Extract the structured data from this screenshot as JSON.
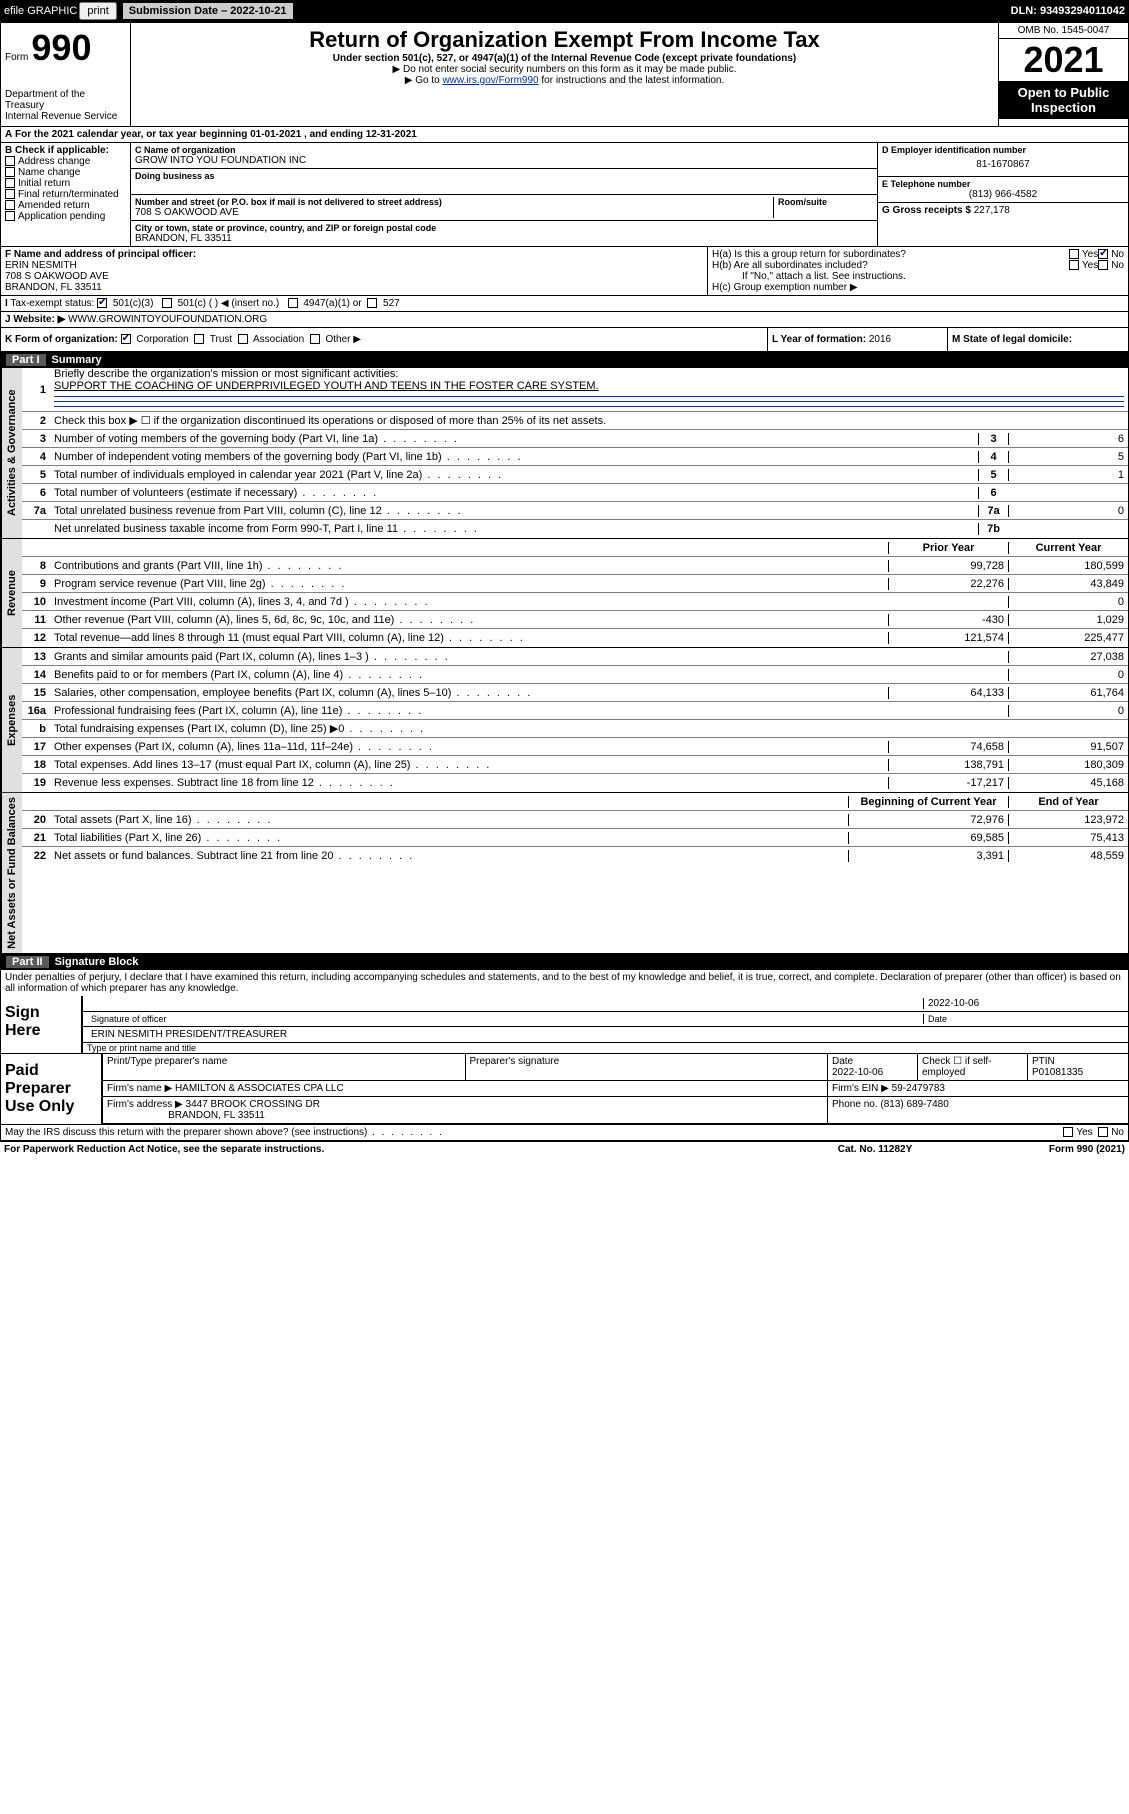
{
  "topbar": {
    "efile": "efile GRAPHIC",
    "print": "print",
    "sub_date_label": "Submission Date – 2022-10-21",
    "dln": "DLN: 93493294011042"
  },
  "header": {
    "form_word": "Form",
    "form_number": "990",
    "dept": "Department of the Treasury",
    "irs": "Internal Revenue Service",
    "title": "Return of Organization Exempt From Income Tax",
    "subtitle": "Under section 501(c), 527, or 4947(a)(1) of the Internal Revenue Code (except private foundations)",
    "warn": "▶ Do not enter social security numbers on this form as it may be made public.",
    "goto_pre": "▶ Go to ",
    "goto_link": "www.irs.gov/Form990",
    "goto_post": " for instructions and the latest information.",
    "omb": "OMB No. 1545-0047",
    "year": "2021",
    "open": "Open to Public Inspection"
  },
  "A": "For the 2021 calendar year, or tax year beginning 01-01-2021   , and ending 12-31-2021",
  "B": {
    "label": "B Check if applicable:",
    "opts": [
      "Address change",
      "Name change",
      "Initial return",
      "Final return/terminated",
      "Amended return",
      "Application pending"
    ]
  },
  "C": {
    "name_label": "C Name of organization",
    "name": "GROW INTO YOU FOUNDATION INC",
    "dba_label": "Doing business as",
    "addr_label": "Number and street (or P.O. box if mail is not delivered to street address)",
    "room_label": "Room/suite",
    "addr": "708 S OAKWOOD AVE",
    "city_label": "City or town, state or province, country, and ZIP or foreign postal code",
    "city": "BRANDON, FL  33511"
  },
  "D": {
    "label": "D Employer identification number",
    "value": "81-1670867"
  },
  "E": {
    "label": "E Telephone number",
    "value": "(813) 966-4582"
  },
  "G": {
    "label": "G Gross receipts $",
    "value": "227,178"
  },
  "F": {
    "label": "F Name and address of principal officer:",
    "lines": [
      "ERIN NESMITH",
      "708 S OAKWOOD AVE",
      "BRANDON, FL  33511"
    ]
  },
  "H": {
    "a": "H(a)  Is this a group return for subordinates?",
    "a_yes": "Yes",
    "a_no": "No",
    "b": "H(b)  Are all subordinates included?",
    "b_note": "If \"No,\" attach a list. See instructions.",
    "c": "H(c)  Group exemption number ▶"
  },
  "I": {
    "label": "Tax-exempt status:",
    "o1": "501(c)(3)",
    "o2": "501(c) ( ) ◀ (insert no.)",
    "o3": "4947(a)(1) or",
    "o4": "527"
  },
  "J": {
    "label": "Website: ▶",
    "value": "WWW.GROWINTOYOUFOUNDATION.ORG"
  },
  "K": {
    "label": "K Form of organization:",
    "opts": [
      "Corporation",
      "Trust",
      "Association",
      "Other ▶"
    ]
  },
  "L": {
    "label": "L Year of formation:",
    "value": "2016"
  },
  "M": {
    "label": "M State of legal domicile:",
    "value": ""
  },
  "part1": {
    "title": "Part I",
    "name": "Summary",
    "side_ag": "Activities & Governance",
    "side_rev": "Revenue",
    "side_exp": "Expenses",
    "side_na": "Net Assets or Fund Balances",
    "l1a": "Briefly describe the organization's mission or most significant activities:",
    "l1b": "SUPPORT THE COACHING OF UNDERPRIVILEGED YOUTH AND TEENS IN THE FOSTER CARE SYSTEM.",
    "l2": "Check this box ▶ ☐  if the organization discontinued its operations or disposed of more than 25% of its net assets.",
    "l3": "Number of voting members of the governing body (Part VI, line 1a)",
    "l4": "Number of independent voting members of the governing body (Part VI, line 1b)",
    "l5": "Total number of individuals employed in calendar year 2021 (Part V, line 2a)",
    "l6": "Total number of volunteers (estimate if necessary)",
    "l7a": "Total unrelated business revenue from Part VIII, column (C), line 12",
    "l7b": "Net unrelated business taxable income from Form 990-T, Part I, line 11",
    "v3": "6",
    "v4": "5",
    "v5": "1",
    "v6": "",
    "v7a": "0",
    "v7b": "",
    "col_py": "Prior Year",
    "col_cy": "Current Year",
    "rows_rev": [
      {
        "n": "8",
        "t": "Contributions and grants (Part VIII, line 1h)",
        "py": "99,728",
        "cy": "180,599"
      },
      {
        "n": "9",
        "t": "Program service revenue (Part VIII, line 2g)",
        "py": "22,276",
        "cy": "43,849"
      },
      {
        "n": "10",
        "t": "Investment income (Part VIII, column (A), lines 3, 4, and 7d )",
        "py": "",
        "cy": "0"
      },
      {
        "n": "11",
        "t": "Other revenue (Part VIII, column (A), lines 5, 6d, 8c, 9c, 10c, and 11e)",
        "py": "-430",
        "cy": "1,029"
      },
      {
        "n": "12",
        "t": "Total revenue—add lines 8 through 11 (must equal Part VIII, column (A), line 12)",
        "py": "121,574",
        "cy": "225,477"
      }
    ],
    "rows_exp": [
      {
        "n": "13",
        "t": "Grants and similar amounts paid (Part IX, column (A), lines 1–3 )",
        "py": "",
        "cy": "27,038"
      },
      {
        "n": "14",
        "t": "Benefits paid to or for members (Part IX, column (A), line 4)",
        "py": "",
        "cy": "0"
      },
      {
        "n": "15",
        "t": "Salaries, other compensation, employee benefits (Part IX, column (A), lines 5–10)",
        "py": "64,133",
        "cy": "61,764"
      },
      {
        "n": "16a",
        "t": "Professional fundraising fees (Part IX, column (A), line 11e)",
        "py": "",
        "cy": "0"
      },
      {
        "n": "b",
        "t": "Total fundraising expenses (Part IX, column (D), line 25) ▶0",
        "py": "GRAY",
        "cy": "GRAY"
      },
      {
        "n": "17",
        "t": "Other expenses (Part IX, column (A), lines 11a–11d, 11f–24e)",
        "py": "74,658",
        "cy": "91,507"
      },
      {
        "n": "18",
        "t": "Total expenses. Add lines 13–17 (must equal Part IX, column (A), line 25)",
        "py": "138,791",
        "cy": "180,309"
      },
      {
        "n": "19",
        "t": "Revenue less expenses. Subtract line 18 from line 12",
        "py": "-17,217",
        "cy": "45,168"
      }
    ],
    "col_bcy": "Beginning of Current Year",
    "col_eoy": "End of Year",
    "rows_na": [
      {
        "n": "20",
        "t": "Total assets (Part X, line 16)",
        "py": "72,976",
        "cy": "123,972"
      },
      {
        "n": "21",
        "t": "Total liabilities (Part X, line 26)",
        "py": "69,585",
        "cy": "75,413"
      },
      {
        "n": "22",
        "t": "Net assets or fund balances. Subtract line 21 from line 20",
        "py": "3,391",
        "cy": "48,559"
      }
    ]
  },
  "part2": {
    "title": "Part II",
    "name": "Signature Block"
  },
  "perjury": "Under penalties of perjury, I declare that I have examined this return, including accompanying schedules and statements, and to the best of my knowledge and belief, it is true, correct, and complete. Declaration of preparer (other than officer) is based on all information of which preparer has any knowledge.",
  "sign": {
    "here": "Sign Here",
    "sig_officer": "Signature of officer",
    "date": "Date",
    "sig_date": "2022-10-06",
    "name_title": "ERIN NESMITH  PRESIDENT/TREASURER",
    "name_label": "Type or print name and title"
  },
  "paid": {
    "label": "Paid Preparer Use Only",
    "h1": "Print/Type preparer's name",
    "h2": "Preparer's signature",
    "h3": "Date",
    "h4": "Check ☐ if self-employed",
    "h5": "PTIN",
    "date": "2022-10-06",
    "ptin": "P01081335",
    "firm_name_l": "Firm's name    ▶",
    "firm_name": "HAMILTON & ASSOCIATES CPA LLC",
    "firm_ein_l": "Firm's EIN ▶",
    "firm_ein": "59-2479783",
    "firm_addr_l": "Firm's address ▶",
    "firm_addr": "3447 BROOK CROSSING DR",
    "firm_addr2": "BRANDON, FL  33511",
    "phone_l": "Phone no.",
    "phone": "(813) 689-7480",
    "discuss": "May the IRS discuss this return with the preparer shown above? (see instructions)",
    "yes": "Yes",
    "no": "No"
  },
  "footer": {
    "pra": "For Paperwork Reduction Act Notice, see the separate instructions.",
    "cat": "Cat. No. 11282Y",
    "form": "Form 990 (2021)"
  }
}
